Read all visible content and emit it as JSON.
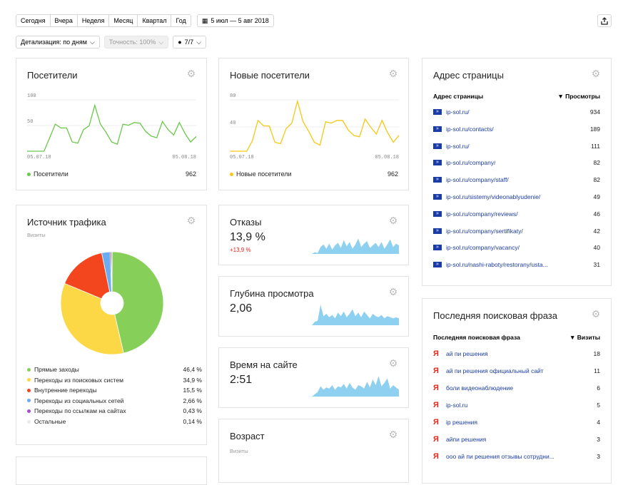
{
  "toolbar": {
    "periods": [
      "Сегодня",
      "Вчера",
      "Неделя",
      "Месяц",
      "Квартал",
      "Год"
    ],
    "date_range": "5 июл — 5 авг 2018",
    "detail": "Детализация: по дням",
    "accuracy": "Точность: 100%",
    "segments": "7/7"
  },
  "visitors": {
    "title": "Посетители",
    "y_ticks": [
      "100",
      "50"
    ],
    "x_start": "05.07.18",
    "x_end": "05.08.18",
    "legend": "Посетители",
    "total": "962",
    "color": "#6ac84a",
    "chart_data": {
      "type": "line",
      "values": [
        5,
        5,
        5,
        5,
        30,
        55,
        48,
        48,
        22,
        20,
        45,
        52,
        90,
        55,
        40,
        22,
        18,
        55,
        53,
        58,
        57,
        42,
        33,
        30,
        60,
        45,
        35,
        58,
        38,
        22,
        32
      ],
      "ylim": [
        5,
        100
      ]
    }
  },
  "new_visitors": {
    "title": "Новые посетители",
    "y_ticks": [
      "80",
      "40"
    ],
    "x_start": "05.07.18",
    "x_end": "05.08.18",
    "legend": "Новые посетители",
    "total": "962",
    "color": "#f5c814",
    "chart_data": {
      "type": "line",
      "values": [
        5,
        5,
        5,
        5,
        20,
        50,
        42,
        42,
        18,
        16,
        38,
        46,
        78,
        48,
        34,
        18,
        14,
        48,
        46,
        50,
        50,
        36,
        28,
        26,
        52,
        40,
        30,
        50,
        32,
        18,
        28
      ],
      "ylim": [
        5,
        80
      ]
    }
  },
  "traffic": {
    "title": "Источник трафика",
    "subtitle": "Визиты",
    "chart_data": {
      "type": "pie",
      "slices": [
        {
          "name": "Прямые заходы",
          "value": 46.4,
          "label": "46,4 %",
          "color": "#86d05a"
        },
        {
          "name": "Переходы из поисковых систем",
          "value": 34.9,
          "label": "34,9 %",
          "color": "#fdd846"
        },
        {
          "name": "Внутренние переходы",
          "value": 15.5,
          "label": "15,5 %",
          "color": "#f3461e"
        },
        {
          "name": "Переходы из социальных сетей",
          "value": 2.66,
          "label": "2,66 %",
          "color": "#6aacef"
        },
        {
          "name": "Переходы по ссылкам на сайтах",
          "value": 0.43,
          "label": "0,43 %",
          "color": "#a64fc8"
        },
        {
          "name": "Остальные",
          "value": 0.14,
          "label": "0,14 %",
          "color": "#e8e8e8"
        }
      ]
    }
  },
  "bounce": {
    "title": "Отказы",
    "value": "13,9 %",
    "delta": "+13,9 %"
  },
  "depth": {
    "title": "Глубина просмотра",
    "value": "2,06"
  },
  "time": {
    "title": "Время на сайте",
    "value": "2:51"
  },
  "age": {
    "title": "Возраст",
    "subtitle": "Визиты"
  },
  "spark_color": "#8ed0ef",
  "pages": {
    "title": "Адрес страницы",
    "col1": "Адрес страницы",
    "col2": "▼ Просмотры",
    "rows": [
      {
        "url": "ip-sol.ru/",
        "v": "934"
      },
      {
        "url": "ip-sol.ru/contacts/",
        "v": "189"
      },
      {
        "url": "ip-sol.ru/",
        "v": "111"
      },
      {
        "url": "ip-sol.ru/company/",
        "v": "82"
      },
      {
        "url": "ip-sol.ru/company/staff/",
        "v": "82"
      },
      {
        "url": "ip-sol.ru/sistemy/videonablyudenie/",
        "v": "49"
      },
      {
        "url": "ip-sol.ru/company/reviews/",
        "v": "46"
      },
      {
        "url": "ip-sol.ru/company/sertifikaty/",
        "v": "42"
      },
      {
        "url": "ip-sol.ru/company/vacancy/",
        "v": "40"
      },
      {
        "url": "ip-sol.ru/nashi-raboty/restorany/usta...",
        "v": "31"
      }
    ]
  },
  "phrases": {
    "title": "Последняя поисковая фраза",
    "col1": "Последняя поисковая фраза",
    "col2": "▼ Визиты",
    "rows": [
      {
        "q": "ай пи решения",
        "v": "18"
      },
      {
        "q": "ай пи решения официальный сайт",
        "v": "11"
      },
      {
        "q": "боли видеонаблюдение",
        "v": "6"
      },
      {
        "q": "ip-sol.ru",
        "v": "5"
      },
      {
        "q": "ip решения",
        "v": "4"
      },
      {
        "q": "айпи решения",
        "v": "3"
      },
      {
        "q": "ооо ай пи решения отзывы сотрудни...",
        "v": "3"
      }
    ]
  }
}
